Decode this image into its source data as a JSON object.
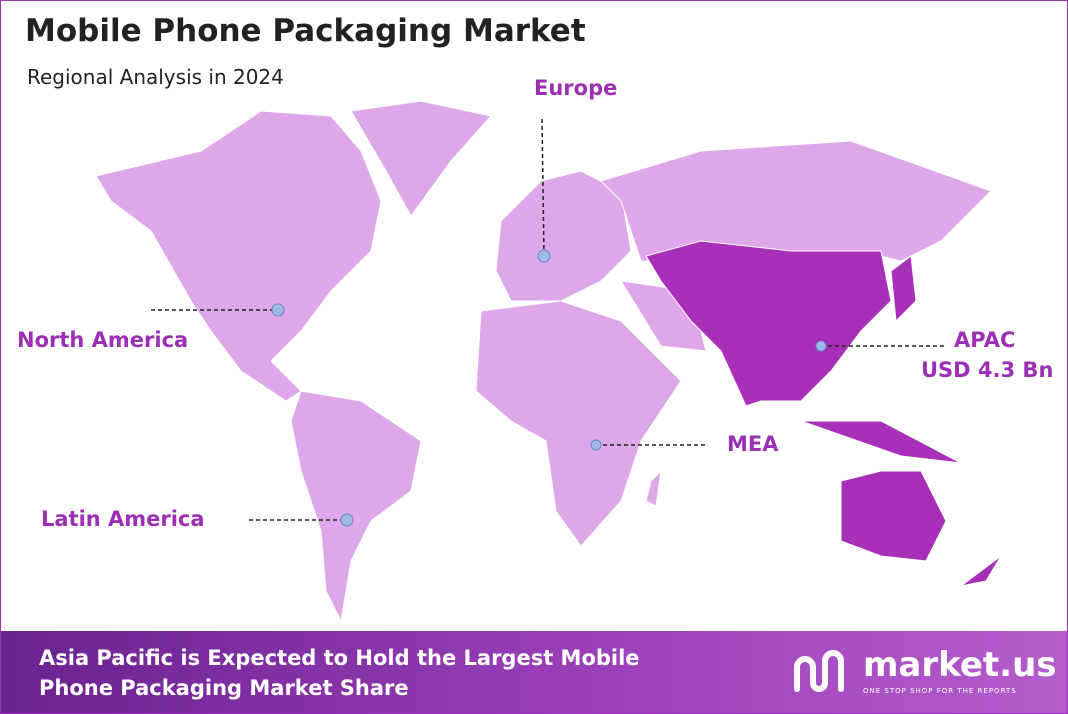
{
  "header": {
    "title": "Mobile Phone Packaging Market",
    "subtitle": "Regional Analysis in 2024"
  },
  "regions": [
    {
      "label": "Europe"
    },
    {
      "label": "North America"
    },
    {
      "label": "APAC",
      "value": "USD 4.3 Bn"
    },
    {
      "label": "MEA"
    },
    {
      "label": "Latin America"
    }
  ],
  "footer": {
    "text": "Asia Pacific is Expected to Hold the Largest Mobile Phone Packaging Market Share",
    "logo": "market.us",
    "tagline": "ONE STOP SHOP FOR THE REPORTS"
  }
}
